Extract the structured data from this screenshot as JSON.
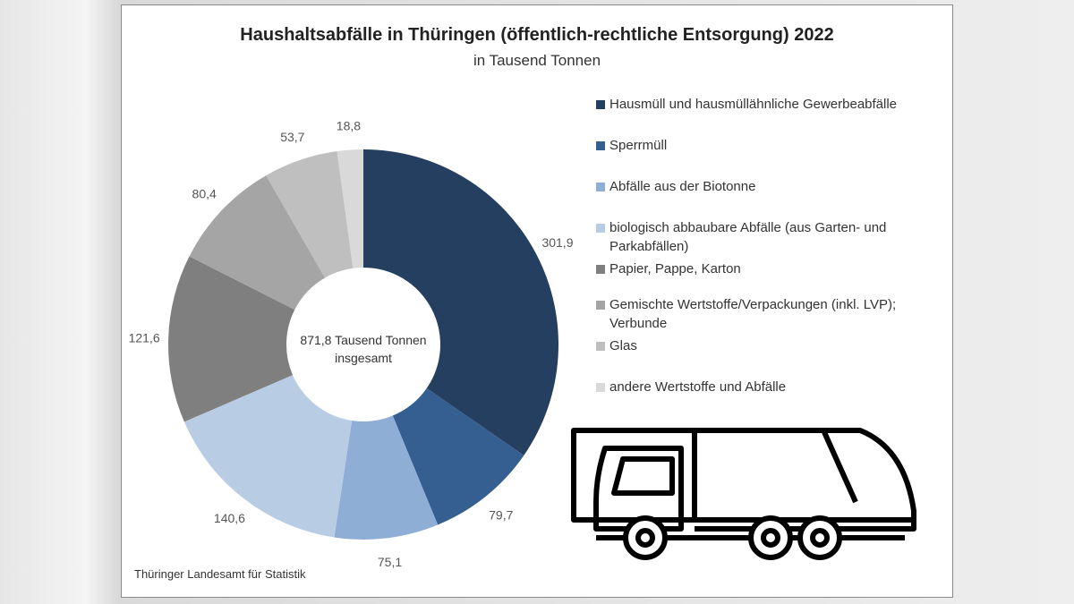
{
  "chart_data": {
    "type": "pie",
    "donut": true,
    "title": "Haushaltsabfälle in Thüringen (öffentlich-rechtliche Entsorgung) 2022",
    "subtitle": "in Tausend Tonnen",
    "center_label": [
      "871,8 Tausend Tonnen",
      "insgesamt"
    ],
    "legend_position": "right",
    "slices": [
      {
        "name": "Hausmüll und hausmüllähnliche Gewerbeabfälle",
        "value": 301.9,
        "label": "301,9",
        "color": "#253f61"
      },
      {
        "name": "Sperrmüll",
        "value": 79.7,
        "label": "79,7",
        "color": "#355f91"
      },
      {
        "name": "Abfälle aus der Biotonne",
        "value": 75.1,
        "label": "75,1",
        "color": "#8eaed5"
      },
      {
        "name": "biologisch abbaubare Abfälle (aus Garten- und Parkabfällen)",
        "value": 140.6,
        "label": "140,6",
        "color": "#b8cce4"
      },
      {
        "name": "Papier, Pappe, Karton",
        "value": 121.6,
        "label": "121,6",
        "color": "#7f7f7f"
      },
      {
        "name": "Gemischte Wertstoffe/Verpackungen (inkl. LVP); Verbunde",
        "value": 80.4,
        "label": "80,4",
        "color": "#a5a5a5"
      },
      {
        "name": "Glas",
        "value": 53.7,
        "label": "53,7",
        "color": "#bfbfbf"
      },
      {
        "name": "andere Wertstoffe und Abfälle",
        "value": 18.8,
        "label": "18,8",
        "color": "#d9d9d9"
      }
    ]
  },
  "source": "Thüringer Landesamt für Statistik",
  "icon": "garbage-truck-icon"
}
